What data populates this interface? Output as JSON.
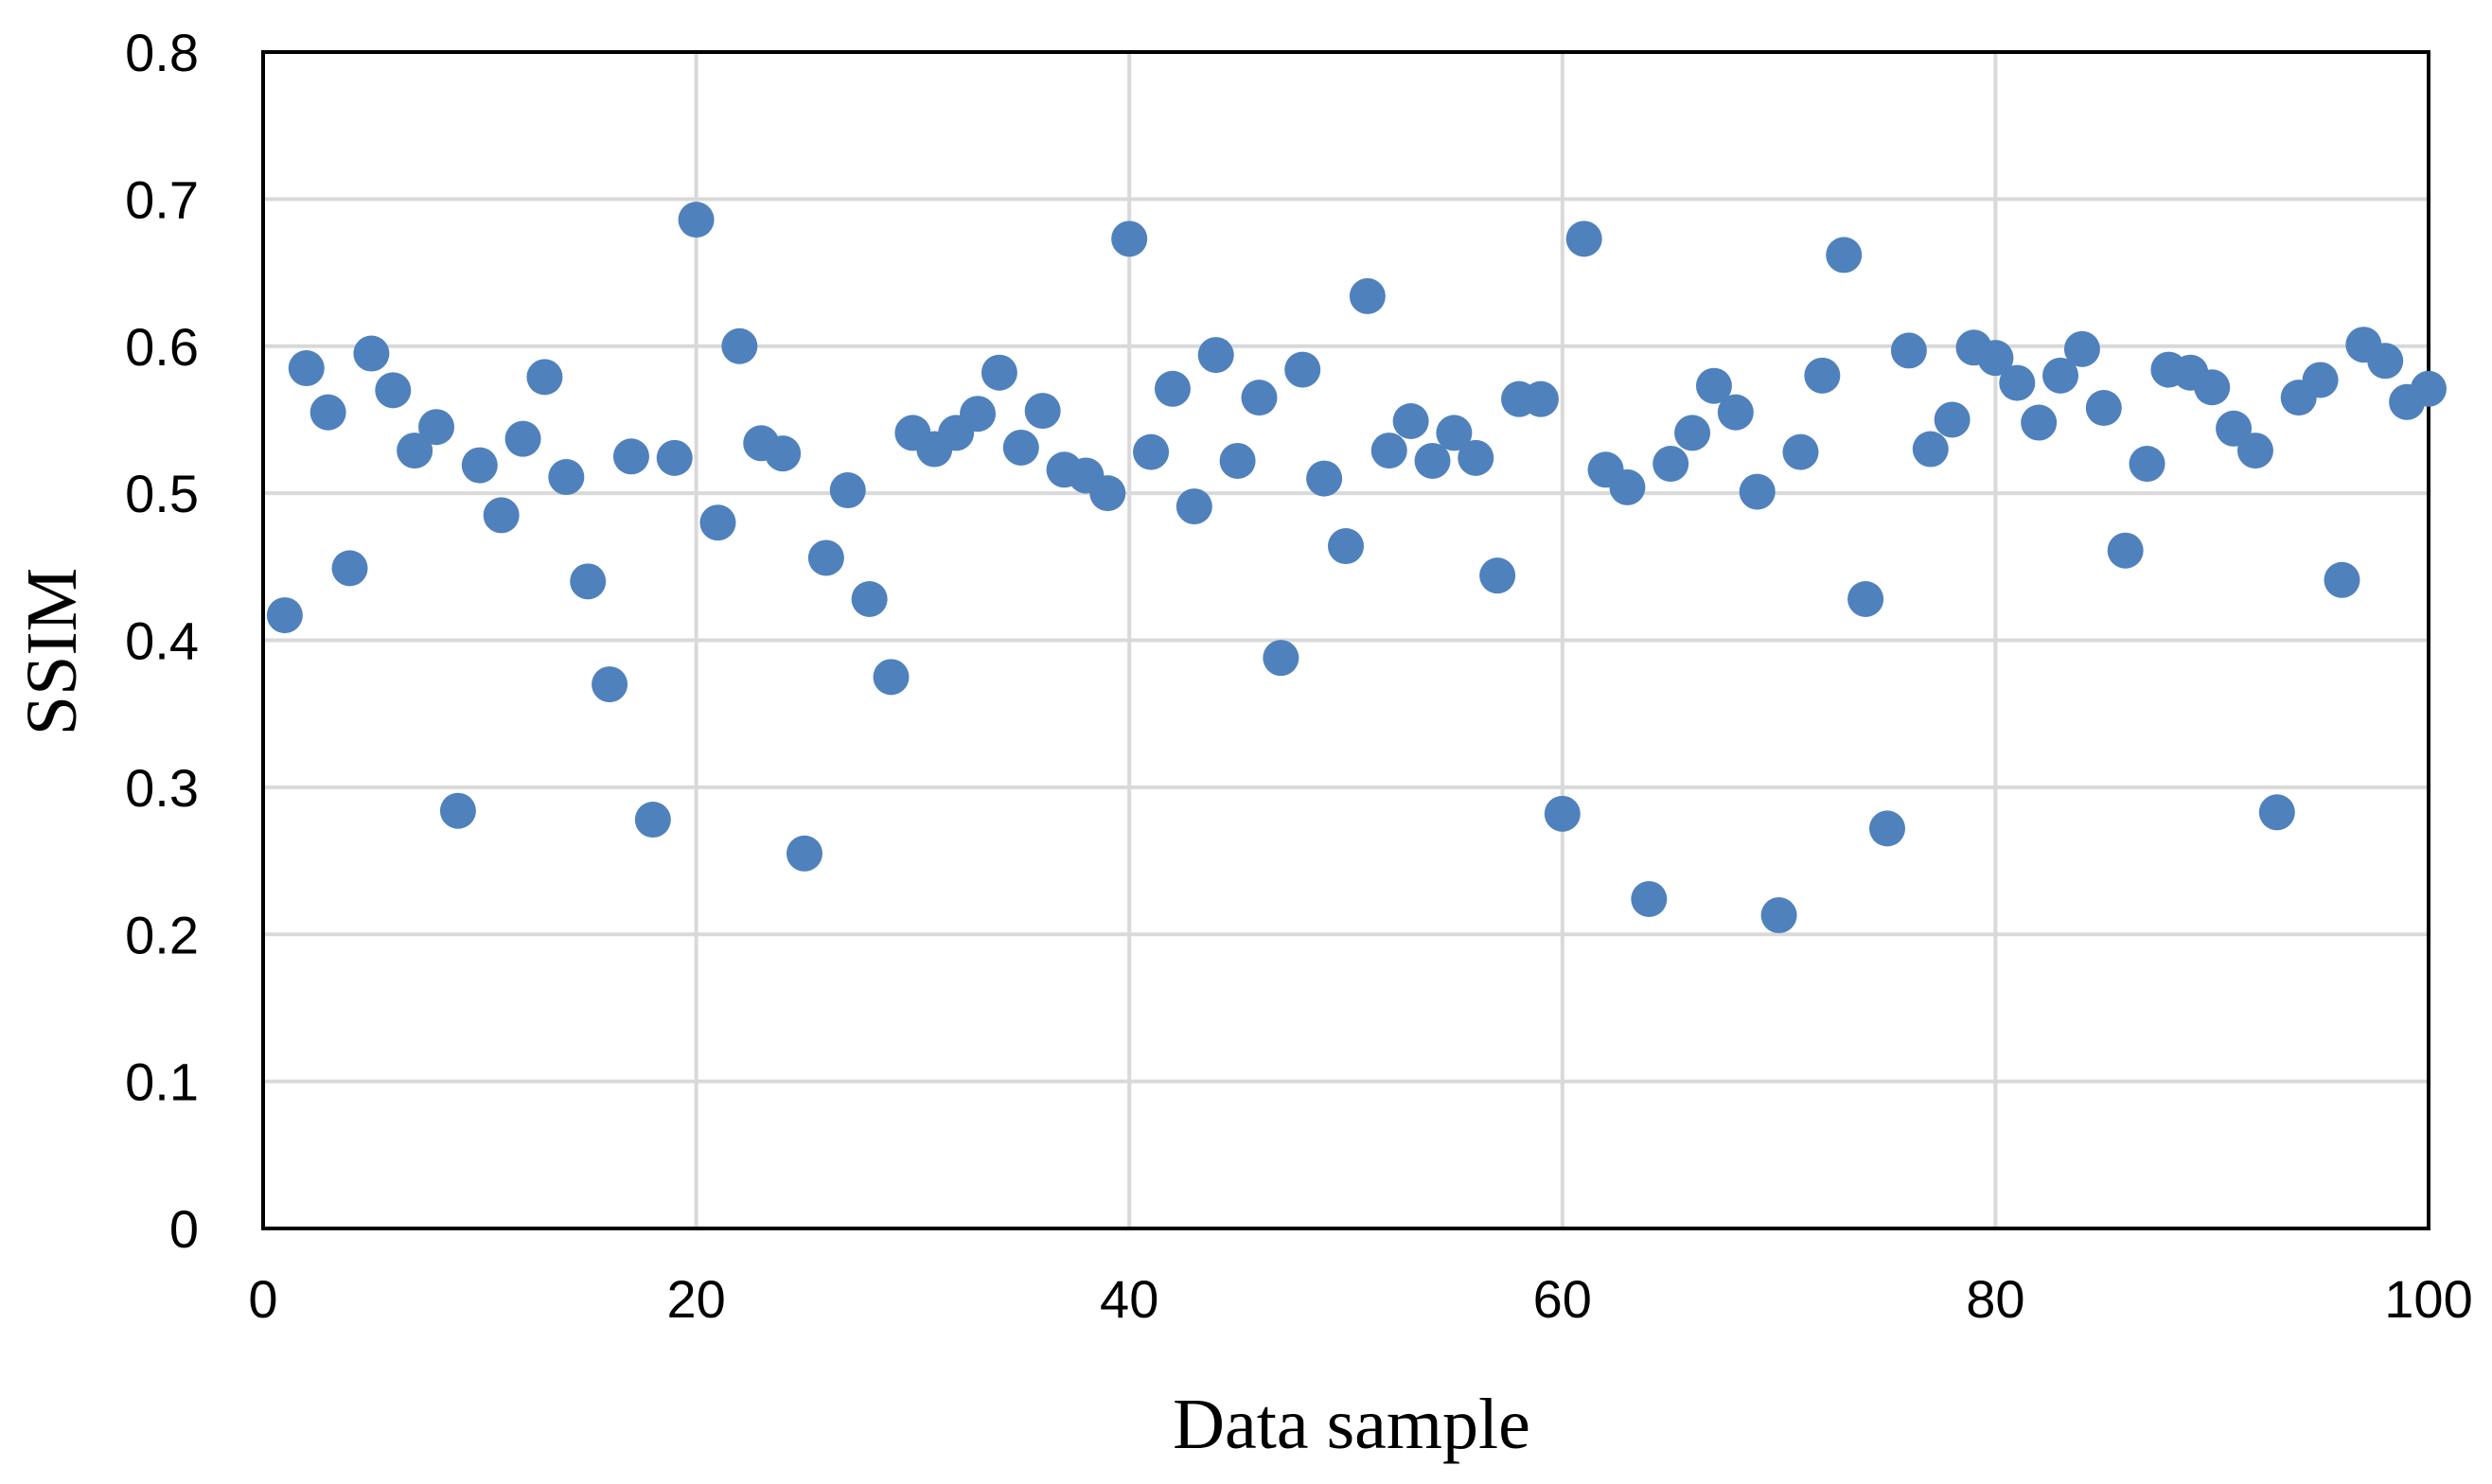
{
  "chart_data": {
    "type": "scatter",
    "title": "",
    "xlabel": "Data sample",
    "ylabel": "SSIM",
    "xlim": [
      0,
      100
    ],
    "ylim": [
      0,
      0.8
    ],
    "xticks": [
      "0",
      "20",
      "40",
      "60",
      "80",
      "100"
    ],
    "yticks": [
      "0",
      "0.1",
      "0.2",
      "0.3",
      "0.4",
      "0.5",
      "0.6",
      "0.7",
      "0.8"
    ],
    "grid": true,
    "legend": "none",
    "marker_color": "#4f81bd",
    "series": [
      {
        "x": [
          1,
          2,
          3,
          4,
          5,
          6,
          7,
          8,
          9,
          10,
          11,
          12,
          13,
          14,
          15,
          16,
          17,
          18,
          19,
          20,
          21,
          22,
          23,
          24,
          25,
          26,
          27,
          28,
          29,
          30,
          31,
          32,
          33,
          34,
          35,
          36,
          37,
          38,
          39,
          40,
          41,
          42,
          43,
          44,
          45,
          46,
          47,
          48,
          49,
          50,
          51,
          52,
          53,
          54,
          55,
          56,
          57,
          58,
          59,
          60,
          61,
          62,
          63,
          64,
          65,
          66,
          67,
          68,
          69,
          70,
          71,
          72,
          73,
          74,
          75,
          76,
          77,
          78,
          79,
          80,
          81,
          82,
          83,
          84,
          85,
          86,
          87,
          88,
          89,
          90,
          91,
          92,
          93,
          94,
          95,
          96,
          97,
          98,
          99,
          100
        ],
        "y": [
          0.417,
          0.585,
          0.555,
          0.449,
          0.595,
          0.57,
          0.529,
          0.545,
          0.284,
          0.519,
          0.485,
          0.537,
          0.579,
          0.511,
          0.44,
          0.37,
          0.525,
          0.278,
          0.524,
          0.686,
          0.48,
          0.6,
          0.534,
          0.527,
          0.255,
          0.456,
          0.502,
          0.428,
          0.375,
          0.541,
          0.53,
          0.541,
          0.554,
          0.582,
          0.531,
          0.556,
          0.516,
          0.512,
          0.5,
          0.673,
          0.528,
          0.571,
          0.491,
          0.594,
          0.522,
          0.565,
          0.388,
          0.584,
          0.51,
          0.464,
          0.634,
          0.529,
          0.549,
          0.522,
          0.541,
          0.524,
          0.444,
          0.564,
          0.564,
          0.282,
          0.673,
          0.516,
          0.504,
          0.224,
          0.52,
          0.541,
          0.573,
          0.555,
          0.501,
          0.213,
          0.528,
          0.58,
          0.662,
          0.428,
          0.272,
          0.597,
          0.53,
          0.55,
          0.599,
          0.592,
          0.575,
          0.548,
          0.58,
          0.598,
          0.558,
          0.461,
          0.52,
          0.584,
          0.582,
          0.572,
          0.544,
          0.529,
          0.283,
          0.565,
          0.577,
          0.441,
          0.601,
          0.59,
          0.562,
          0.571
        ]
      }
    ]
  }
}
